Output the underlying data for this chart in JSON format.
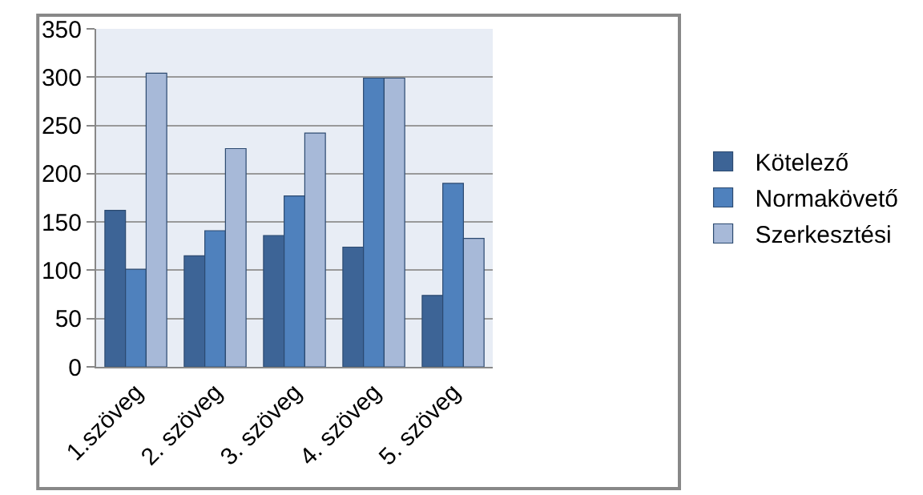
{
  "chart_data": {
    "type": "bar",
    "categories": [
      "1.szöveg",
      "2. szöveg",
      "3. szöveg",
      "4. szöveg",
      "5. szöveg"
    ],
    "series": [
      {
        "name": "Kötelező",
        "color": "#3d6496",
        "values": [
          162,
          115,
          136,
          124,
          74
        ]
      },
      {
        "name": "Normakövető",
        "color": "#4f81bd",
        "values": [
          101,
          141,
          177,
          299,
          190
        ]
      },
      {
        "name": "Szerkesztési",
        "color": "#a7b9d8",
        "values": [
          304,
          226,
          242,
          299,
          133
        ]
      }
    ],
    "ylim": [
      0,
      350
    ],
    "yticks": [
      0,
      50,
      100,
      150,
      200,
      250,
      300,
      350
    ],
    "grid": "y",
    "legend": "right"
  }
}
